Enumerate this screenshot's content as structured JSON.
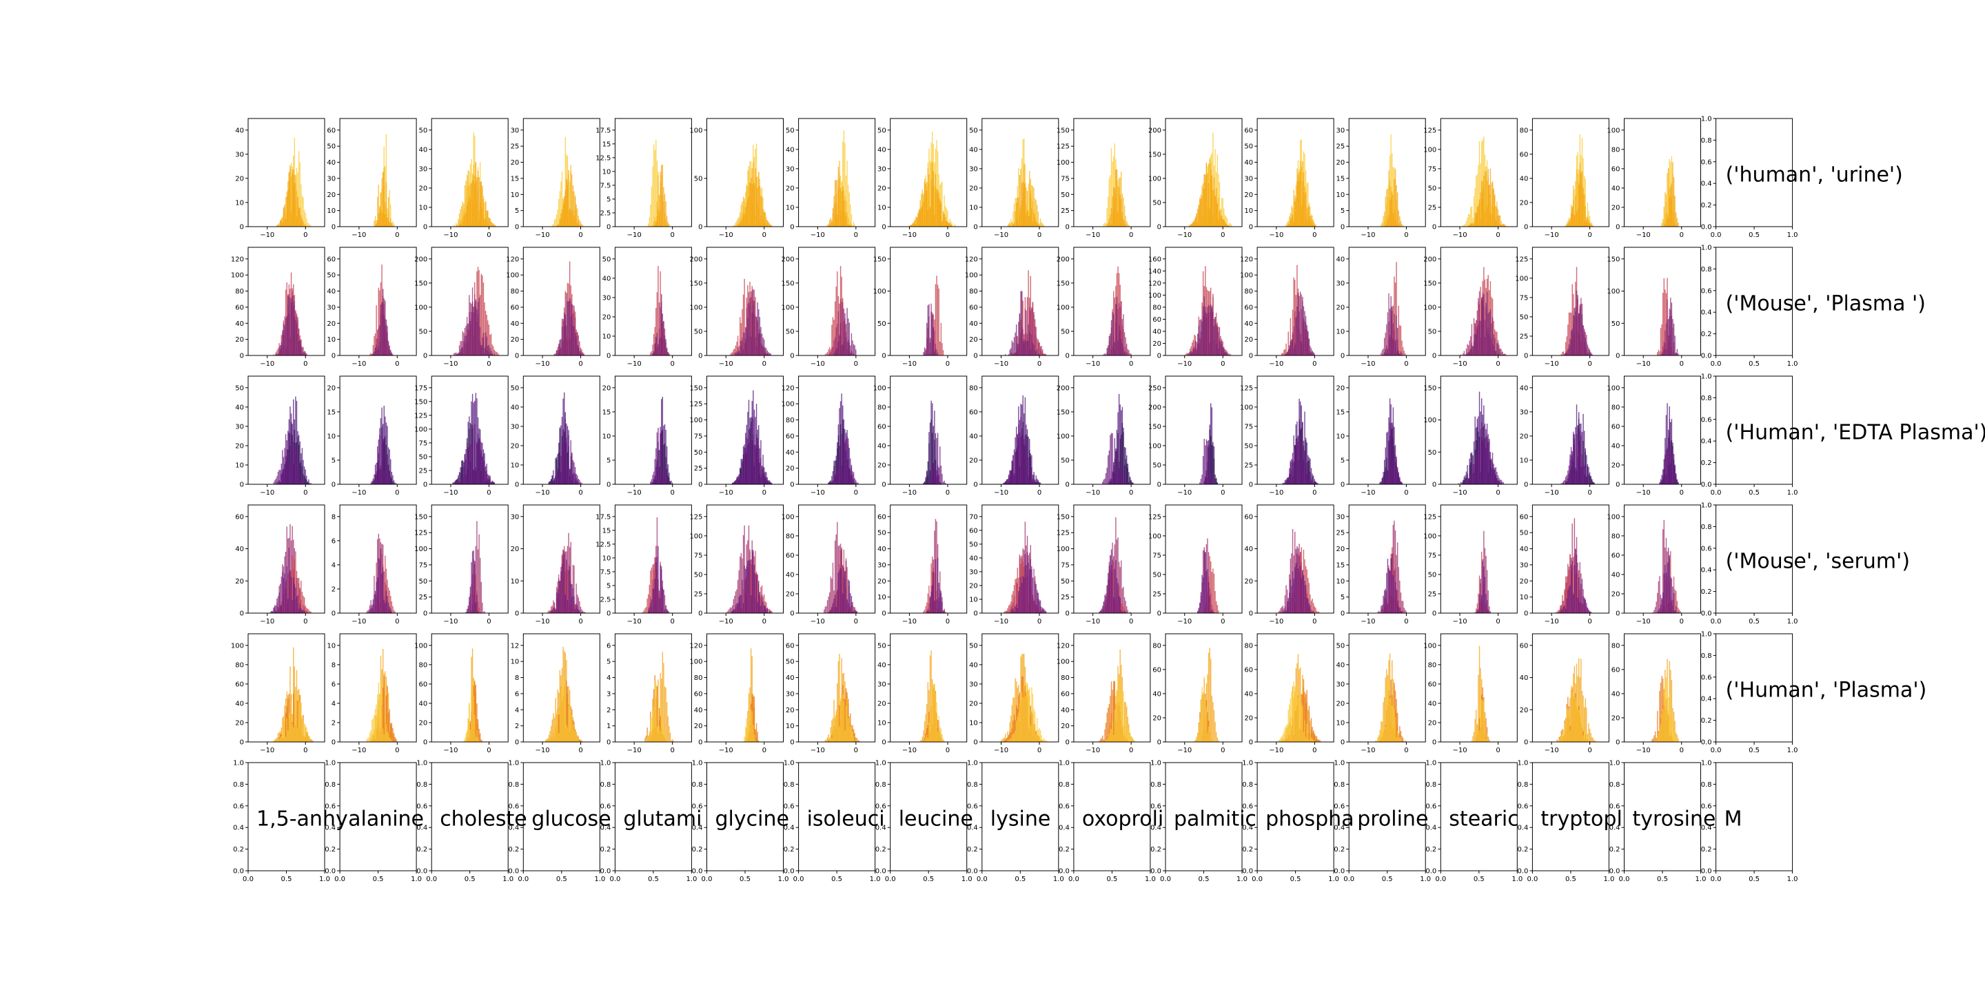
{
  "chart_data": {
    "type": "histogram_grid",
    "grid_rows": 6,
    "grid_cols": 17,
    "metabolites": [
      "1,5-anhy",
      "alanine",
      "choleste",
      "glucose",
      "glutami",
      "glycine",
      "isoleuci",
      "leucine",
      "lysine",
      "oxoproli",
      "palmitic",
      "phospha",
      "proline",
      "stearic",
      "tryptopl",
      "tyrosine",
      "M"
    ],
    "row_labels": [
      "('human', 'urine')",
      "('Mouse', 'Plasma ')",
      "('Human', 'EDTA Plasma')",
      "('Mouse', 'serum')",
      "('Human', 'Plasma')"
    ],
    "histogram_x_ticks": [
      -10,
      0
    ],
    "histogram_x_range": [
      -15,
      5
    ],
    "empty_axis_ticks": [
      0.0,
      0.2,
      0.4,
      0.6,
      0.8,
      1.0
    ],
    "empty_axis_x_ticks": [
      0.0,
      0.5,
      1.0
    ],
    "y_ticks": [
      [
        [
          0,
          10,
          20,
          30,
          40
        ],
        [
          0,
          10,
          20,
          30,
          40,
          50,
          60
        ],
        [
          0,
          10,
          20,
          30,
          40,
          50
        ],
        [
          0,
          5,
          10,
          15,
          20,
          25,
          30
        ],
        [
          0,
          2.5,
          5.0,
          7.5,
          10.0,
          12.5,
          15.0,
          17.5
        ],
        [
          0,
          50,
          100
        ],
        [
          0,
          10,
          20,
          30,
          40,
          50
        ],
        [
          0,
          10,
          20,
          30,
          40,
          50
        ],
        [
          0,
          10,
          20,
          30,
          40,
          50
        ],
        [
          0,
          25,
          50,
          75,
          100,
          125,
          150
        ],
        [
          0,
          50,
          100,
          150,
          200
        ],
        [
          0,
          10,
          20,
          30,
          40,
          50,
          60
        ],
        [
          0,
          5,
          10,
          15,
          20,
          25,
          30
        ],
        [
          0,
          25,
          50,
          75,
          100,
          125
        ],
        [
          0,
          20,
          40,
          60,
          80
        ],
        [
          0,
          20,
          40,
          60,
          80,
          100
        ]
      ],
      [
        [
          0,
          20,
          40,
          60,
          80,
          100,
          120
        ],
        [
          0,
          10,
          20,
          30,
          40,
          50,
          60
        ],
        [
          0,
          50,
          100,
          150,
          200
        ],
        [
          0,
          20,
          40,
          60,
          80,
          100,
          120
        ],
        [
          0,
          10,
          20,
          30,
          40,
          50
        ],
        [
          0,
          50,
          100,
          150,
          200
        ],
        [
          0,
          50,
          100,
          150,
          200
        ],
        [
          0,
          50,
          100,
          150
        ],
        [
          0,
          20,
          40,
          60,
          80,
          100,
          120
        ],
        [
          0,
          50,
          100,
          150,
          200
        ],
        [
          0,
          20,
          40,
          60,
          80,
          100,
          120,
          140,
          160
        ],
        [
          0,
          20,
          40,
          60,
          80,
          100,
          120
        ],
        [
          0,
          10,
          20,
          30,
          40
        ],
        [
          0,
          50,
          100,
          150,
          200
        ],
        [
          0,
          25,
          50,
          75,
          100,
          125
        ],
        [
          0,
          50,
          100,
          150
        ]
      ],
      [
        [
          0,
          10,
          20,
          30,
          40,
          50
        ],
        [
          0,
          5,
          10,
          15,
          20
        ],
        [
          0,
          25,
          50,
          75,
          100,
          125,
          150,
          175
        ],
        [
          0,
          10,
          20,
          30,
          40,
          50
        ],
        [
          0,
          5,
          10,
          15,
          20
        ],
        [
          0,
          25,
          50,
          75,
          100,
          125,
          150
        ],
        [
          0,
          20,
          40,
          60,
          80,
          100,
          120
        ],
        [
          0,
          20,
          40,
          60,
          80,
          100
        ],
        [
          0,
          20,
          40,
          60,
          80
        ],
        [
          0,
          50,
          100,
          150,
          200
        ],
        [
          0,
          50,
          100,
          150,
          200,
          250
        ],
        [
          0,
          25,
          50,
          75,
          100,
          125
        ],
        [
          0,
          5,
          10,
          15,
          20
        ],
        [
          0,
          50,
          100,
          150
        ],
        [
          0,
          10,
          20,
          30,
          40
        ],
        [
          0,
          20,
          40,
          60,
          80,
          100
        ]
      ],
      [
        [
          0,
          20,
          40,
          60
        ],
        [
          0,
          2,
          4,
          6,
          8
        ],
        [
          0,
          25,
          50,
          75,
          100,
          125,
          150
        ],
        [
          0,
          10,
          20,
          30
        ],
        [
          0,
          2.5,
          5.0,
          7.5,
          10.0,
          12.5,
          15.0,
          17.5
        ],
        [
          0,
          25,
          50,
          75,
          100,
          125
        ],
        [
          0,
          20,
          40,
          60,
          80,
          100
        ],
        [
          0,
          10,
          20,
          30,
          40,
          50,
          60
        ],
        [
          0,
          10,
          20,
          30,
          40,
          50,
          60,
          70
        ],
        [
          0,
          25,
          50,
          75,
          100,
          125,
          150
        ],
        [
          0,
          25,
          50,
          75,
          100,
          125
        ],
        [
          0,
          20,
          40,
          60
        ],
        [
          0,
          5,
          10,
          15,
          20,
          25,
          30
        ],
        [
          0,
          25,
          50,
          75,
          100,
          125
        ],
        [
          0,
          10,
          20,
          30,
          40,
          50,
          60
        ],
        [
          0,
          20,
          40,
          60,
          80,
          100
        ]
      ],
      [
        [
          0,
          20,
          40,
          60,
          80,
          100
        ],
        [
          0,
          2,
          4,
          6,
          8,
          10
        ],
        [
          0,
          20,
          40,
          60,
          80,
          100
        ],
        [
          0,
          2,
          4,
          6,
          8,
          10,
          12
        ],
        [
          0,
          1,
          2,
          3,
          4,
          5,
          6
        ],
        [
          0,
          20,
          40,
          60,
          80,
          100,
          120
        ],
        [
          0,
          10,
          20,
          30,
          40,
          50,
          60
        ],
        [
          0,
          10,
          20,
          30,
          40,
          50
        ],
        [
          0,
          10,
          20,
          30,
          40,
          50
        ],
        [
          0,
          20,
          40,
          60,
          80,
          100,
          120
        ],
        [
          0,
          20,
          40,
          60,
          80
        ],
        [
          0,
          20,
          40,
          60,
          80
        ],
        [
          0,
          10,
          20,
          30,
          40,
          50
        ],
        [
          0,
          20,
          40,
          60,
          80,
          100
        ],
        [
          0,
          20,
          40,
          60
        ],
        [
          0,
          20,
          40,
          60,
          80
        ]
      ]
    ],
    "series_colors": [
      "#f9c932",
      "#f3a20f",
      "#e8720c",
      "#c53c4b",
      "#8c2981",
      "#5d126e",
      "#2a1050",
      "#0d0829"
    ],
    "row_palettes": [
      [
        "#f9c932",
        "#f6b61a",
        "#f3a20f",
        "#ef8a0c"
      ],
      [
        "#c53c4b",
        "#a02d69",
        "#7a2173",
        "#0d0829"
      ],
      [
        "#4f137a",
        "#2a1050",
        "#6a177e",
        "#0d0829"
      ],
      [
        "#a02d69",
        "#c53c4b",
        "#6a177e",
        "#4f137a"
      ],
      [
        "#f3a20f",
        "#e8720c",
        "#f9c932",
        "#c53c4b"
      ]
    ],
    "grid": false,
    "legend": "none"
  }
}
